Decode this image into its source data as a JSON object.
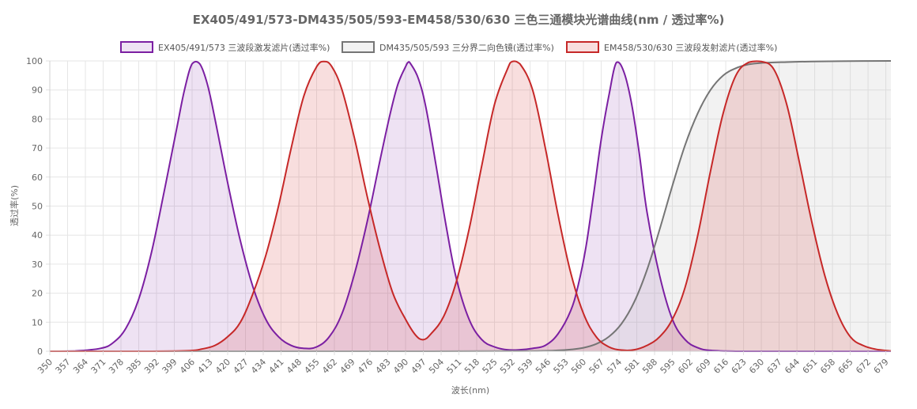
{
  "chart_data": {
    "type": "line",
    "title": "EX405/491/573-DM435/505/593-EM458/530/630 三色三通模块光谱曲线(nm / 透过率%)",
    "xlabel": "波长(nm)",
    "ylabel": "透过率(%)",
    "xlim": [
      350,
      681
    ],
    "ylim": [
      0,
      100
    ],
    "x_ticks": [
      350,
      357,
      364,
      371,
      378,
      385,
      392,
      399,
      406,
      413,
      420,
      427,
      434,
      441,
      448,
      455,
      462,
      469,
      476,
      483,
      490,
      497,
      504,
      511,
      518,
      525,
      532,
      539,
      546,
      553,
      560,
      567,
      574,
      581,
      588,
      595,
      602,
      609,
      616,
      623,
      630,
      637,
      644,
      651,
      658,
      665,
      672,
      679
    ],
    "y_ticks": [
      0,
      10,
      20,
      30,
      40,
      50,
      60,
      70,
      80,
      90,
      100
    ],
    "grid": true,
    "legend_position": "top-center",
    "series": [
      {
        "name": "EX405/491/573 三波段激发滤片(透过率%)",
        "color": "#7b1fa2",
        "fill": "rgba(123,31,162,0.13)",
        "x": [
          350,
          360,
          370,
          375,
          380,
          385,
          390,
          395,
          400,
          403,
          406,
          409,
          412,
          415,
          420,
          425,
          430,
          435,
          440,
          445,
          450,
          455,
          460,
          465,
          470,
          475,
          480,
          484,
          487,
          490,
          491,
          492,
          495,
          498,
          502,
          506,
          510,
          515,
          520,
          525,
          530,
          535,
          540,
          545,
          550,
          555,
          558,
          561,
          564,
          567,
          570,
          573,
          576,
          579,
          582,
          585,
          590,
          595,
          600,
          605,
          610,
          620,
          640,
          660,
          681
        ],
        "values": [
          0,
          0.1,
          1,
          3,
          8,
          18,
          34,
          55,
          77,
          90,
          99,
          99,
          92,
          80,
          58,
          38,
          22,
          11,
          5,
          2,
          1,
          1.5,
          5,
          13,
          27,
          45,
          66,
          82,
          92,
          98,
          99.5,
          99,
          94,
          84,
          64,
          43,
          25,
          11,
          4,
          1.5,
          0.5,
          0.5,
          1,
          2,
          6,
          14,
          23,
          36,
          54,
          73,
          88,
          99.5,
          96,
          85,
          68,
          48,
          26,
          11,
          4,
          1.2,
          0.3,
          0,
          0,
          0,
          0
        ]
      },
      {
        "name": "DM435/505/593 三分界二向色镜(透过率%)",
        "color": "#757575",
        "fill": "rgba(189,189,189,0.2)",
        "x": [
          350,
          500,
          540,
          550,
          555,
          560,
          565,
          570,
          575,
          580,
          585,
          590,
          595,
          600,
          605,
          610,
          615,
          620,
          625,
          630,
          640,
          650,
          660,
          681
        ],
        "values": [
          0,
          0,
          0.1,
          0.3,
          0.6,
          1.2,
          2.5,
          5,
          9.5,
          17,
          28,
          42,
          57,
          71,
          82,
          90,
          95,
          97.5,
          98.8,
          99.3,
          99.6,
          99.8,
          99.9,
          100
        ]
      },
      {
        "name": "EM458/530/630 三波段发射滤片(透过率%)",
        "color": "#c62828",
        "fill": "rgba(211,47,47,0.16)",
        "x": [
          350,
          390,
          405,
          410,
          415,
          420,
          425,
          430,
          435,
          440,
          445,
          450,
          455,
          458,
          461,
          465,
          470,
          475,
          480,
          485,
          490,
          494,
          497,
          500,
          505,
          510,
          515,
          520,
          525,
          530,
          532,
          535,
          540,
          545,
          550,
          555,
          560,
          565,
          570,
          575,
          580,
          585,
          590,
          595,
          600,
          605,
          610,
          615,
          620,
          625,
          630,
          635,
          640,
          645,
          650,
          655,
          660,
          665,
          670,
          675,
          681
        ],
        "values": [
          0,
          0,
          0.2,
          0.8,
          2,
          5,
          10,
          20,
          33,
          50,
          70,
          88,
          98,
          99.8,
          98,
          90,
          73,
          53,
          35,
          20,
          11,
          5.5,
          4,
          6,
          12,
          24,
          42,
          64,
          85,
          97,
          99.8,
          99,
          90,
          70,
          47,
          27,
          13,
          5,
          1.5,
          0.4,
          0.5,
          2,
          5,
          11,
          22,
          40,
          62,
          82,
          95,
          99.5,
          99.8,
          97,
          85,
          65,
          44,
          26,
          13,
          5,
          2,
          0.7,
          0.1
        ]
      }
    ]
  }
}
